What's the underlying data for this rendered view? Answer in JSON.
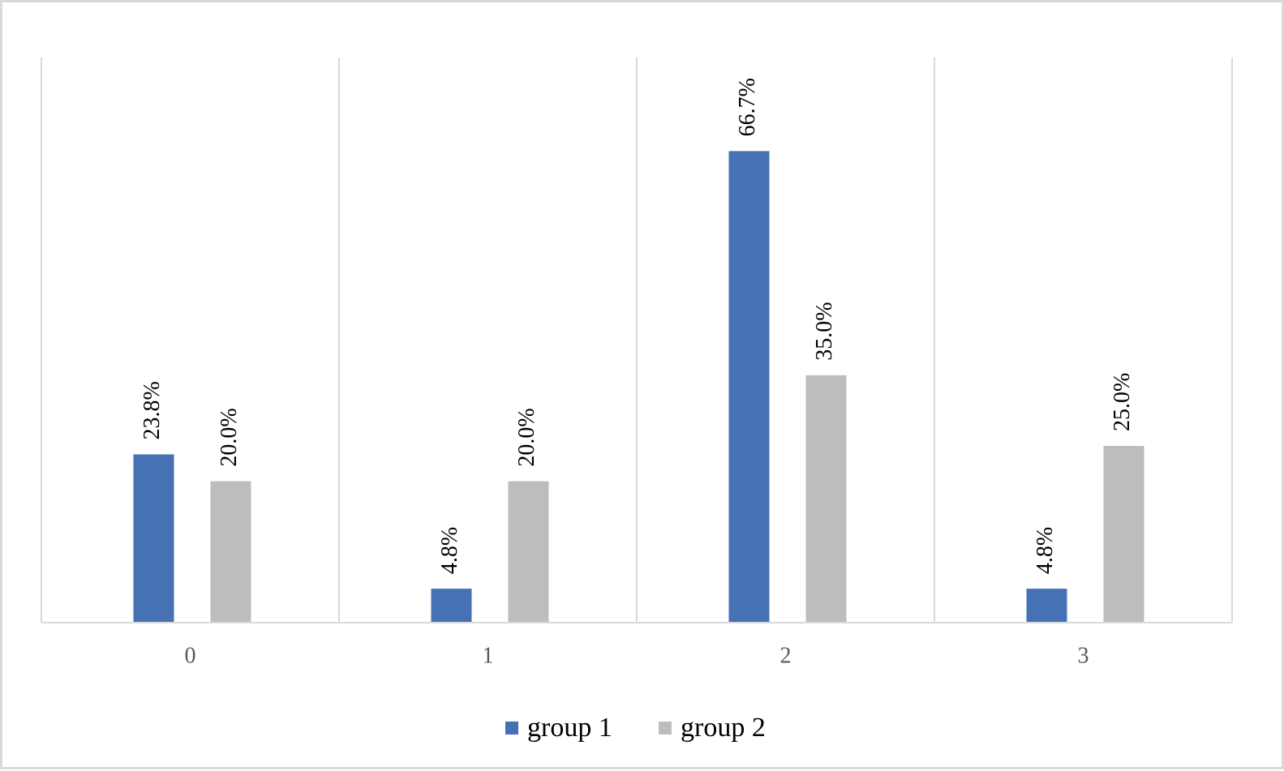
{
  "chart_data": {
    "type": "bar",
    "categories": [
      "0",
      "1",
      "2",
      "3"
    ],
    "series": [
      {
        "name": "group 1",
        "values": [
          23.8,
          4.8,
          66.7,
          4.8
        ],
        "labels": [
          "23.8%",
          "4.8%",
          "66.7%",
          "4.8%"
        ],
        "color": "#4671b5"
      },
      {
        "name": "group 2",
        "values": [
          20.0,
          20.0,
          35.0,
          25.0
        ],
        "labels": [
          "20.0%",
          "20.0%",
          "35.0%",
          "25.0%"
        ],
        "color": "#bdbdbd"
      }
    ],
    "unit": "%",
    "ylim": [
      0,
      80
    ],
    "grid": "vertical category separators",
    "legend": "bottom-center",
    "title": "",
    "xlabel": "",
    "ylabel": ""
  }
}
